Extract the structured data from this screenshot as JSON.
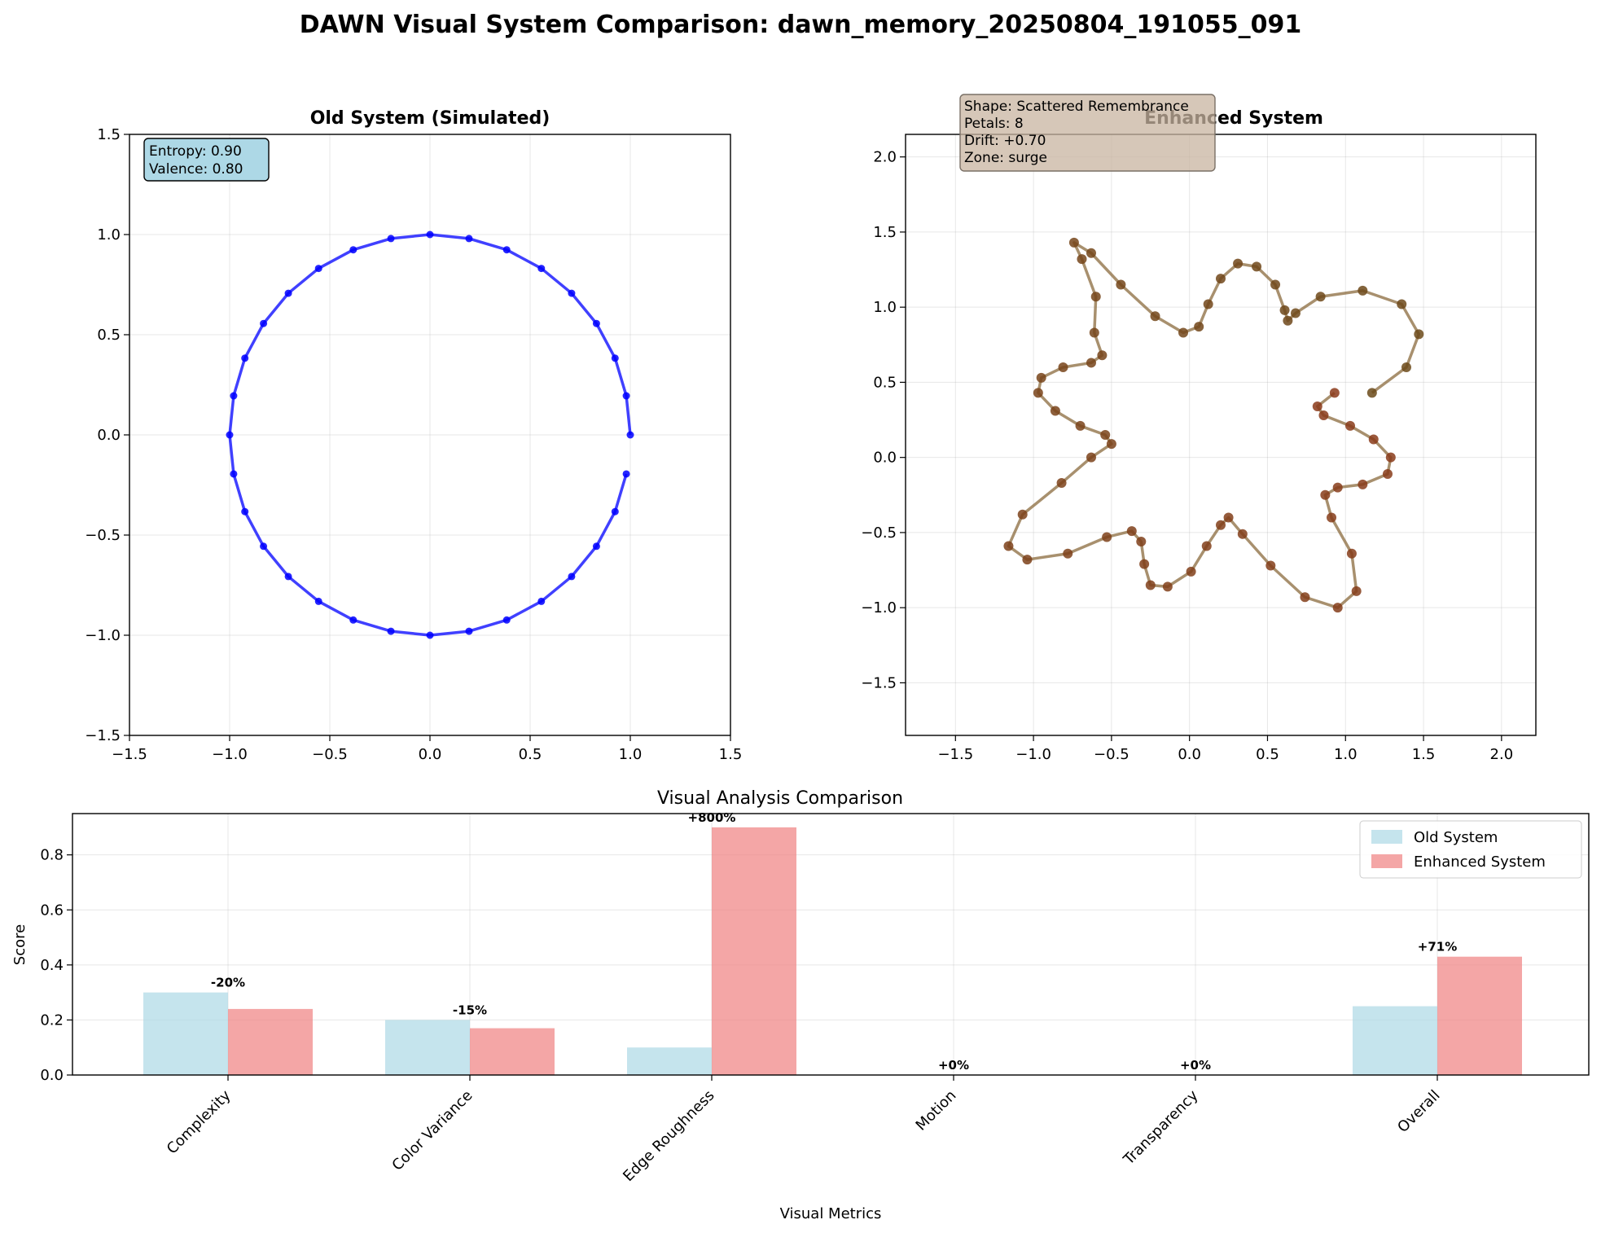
{
  "figure": {
    "suptitle": "DAWN Visual System Comparison: dawn_memory_20250804_191055_091"
  },
  "colors": {
    "old_line": "#0000ff",
    "enhanced_line": "#8b6b3d",
    "enhanced_point_start": "#8b3a1a",
    "enhanced_point_end": "#6b4a1a",
    "old_bar": "#add8e6",
    "enhanced_bar": "#f08080",
    "entropy_box": "#add8e6",
    "shape_box": "#c8b4a0"
  },
  "chart_data": [
    {
      "type": "line",
      "title": "Old System (Simulated)",
      "xlim": [
        -1.5,
        1.5
      ],
      "ylim": [
        -1.5,
        1.5
      ],
      "xticks": [
        -1.5,
        -1.0,
        -0.5,
        0.0,
        0.5,
        1.0,
        1.5
      ],
      "yticks": [
        -1.5,
        -1.0,
        -0.5,
        0.0,
        0.5,
        1.0,
        1.5
      ],
      "grid": true,
      "annotation": [
        "Entropy: 0.90",
        "Valence: 0.80"
      ],
      "x": [
        1.0,
        0.98,
        0.924,
        0.831,
        0.707,
        0.556,
        0.383,
        0.195,
        0.0,
        -0.195,
        -0.383,
        -0.556,
        -0.707,
        -0.831,
        -0.924,
        -0.98,
        -1.0,
        -0.98,
        -0.924,
        -0.831,
        -0.707,
        -0.556,
        -0.383,
        -0.195,
        0.0,
        0.195,
        0.383,
        0.556,
        0.707,
        0.831,
        0.924,
        0.98
      ],
      "y": [
        0.0,
        0.195,
        0.383,
        0.556,
        0.707,
        0.831,
        0.924,
        0.98,
        1.0,
        0.98,
        0.924,
        0.831,
        0.707,
        0.556,
        0.383,
        0.195,
        0.0,
        -0.195,
        -0.383,
        -0.556,
        -0.707,
        -0.831,
        -0.924,
        -0.98,
        -1.0,
        -0.98,
        -0.924,
        -0.831,
        -0.707,
        -0.556,
        -0.383,
        -0.195
      ]
    },
    {
      "type": "line",
      "title": "Enhanced System",
      "xlim": [
        -1.82,
        2.22
      ],
      "ylim": [
        -1.85,
        2.15
      ],
      "xticks": [
        -1.5,
        -1.0,
        -0.5,
        0.0,
        0.5,
        1.0,
        1.5,
        2.0
      ],
      "yticks": [
        -1.5,
        -1.0,
        -0.5,
        0.0,
        0.5,
        1.0,
        1.5,
        2.0
      ],
      "grid": true,
      "annotation": [
        "Shape: Scattered Remembrance",
        "Petals: 8",
        "Drift: +0.70",
        "Zone: surge"
      ],
      "x": [
        0.93,
        0.82,
        0.86,
        1.03,
        1.18,
        1.29,
        1.27,
        1.11,
        0.95,
        0.87,
        0.91,
        1.04,
        1.07,
        0.95,
        0.74,
        0.52,
        0.34,
        0.25,
        0.2,
        0.11,
        0.01,
        -0.14,
        -0.25,
        -0.29,
        -0.31,
        -0.37,
        -0.53,
        -0.78,
        -1.04,
        -1.16,
        -1.07,
        -0.82,
        -0.63,
        -0.5,
        -0.54,
        -0.7,
        -0.86,
        -0.97,
        -0.95,
        -0.81,
        -0.63,
        -0.56,
        -0.61,
        -0.6,
        -0.69,
        -0.74,
        -0.63,
        -0.44,
        -0.22,
        -0.04,
        0.06,
        0.12,
        0.2,
        0.31,
        0.43,
        0.55,
        0.61,
        0.63,
        0.68,
        0.84,
        1.11,
        1.36,
        1.47,
        1.39,
        1.17
      ],
      "y": [
        0.43,
        0.34,
        0.28,
        0.21,
        0.12,
        0.0,
        -0.11,
        -0.18,
        -0.2,
        -0.25,
        -0.4,
        -0.64,
        -0.89,
        -1.0,
        -0.93,
        -0.72,
        -0.51,
        -0.4,
        -0.45,
        -0.59,
        -0.76,
        -0.86,
        -0.85,
        -0.71,
        -0.56,
        -0.49,
        -0.53,
        -0.64,
        -0.68,
        -0.59,
        -0.38,
        -0.17,
        0.0,
        0.09,
        0.15,
        0.21,
        0.31,
        0.43,
        0.53,
        0.6,
        0.63,
        0.68,
        0.83,
        1.07,
        1.32,
        1.43,
        1.36,
        1.15,
        0.94,
        0.83,
        0.87,
        1.02,
        1.19,
        1.29,
        1.27,
        1.15,
        0.98,
        0.91,
        0.96,
        1.07,
        1.11,
        1.02,
        0.82,
        0.6,
        0.43
      ]
    },
    {
      "type": "bar",
      "title": "Visual Analysis Comparison",
      "xlabel": "Visual Metrics",
      "ylabel": "Score",
      "ylim": [
        0,
        0.95
      ],
      "yticks": [
        0.0,
        0.2,
        0.4,
        0.6,
        0.8
      ],
      "grid": true,
      "legend": "top-right",
      "categories": [
        "Complexity",
        "Color Variance",
        "Edge Roughness",
        "Motion",
        "Transparency",
        "Overall"
      ],
      "series": [
        {
          "name": "Old System",
          "values": [
            0.3,
            0.2,
            0.1,
            0.0,
            0.0,
            0.25
          ]
        },
        {
          "name": "Enhanced System",
          "values": [
            0.24,
            0.17,
            0.9,
            0.0,
            0.0,
            0.43
          ]
        }
      ],
      "change_labels": [
        "-20%",
        "-15%",
        "+800%",
        "+0%",
        "+0%",
        "+71%"
      ]
    }
  ]
}
